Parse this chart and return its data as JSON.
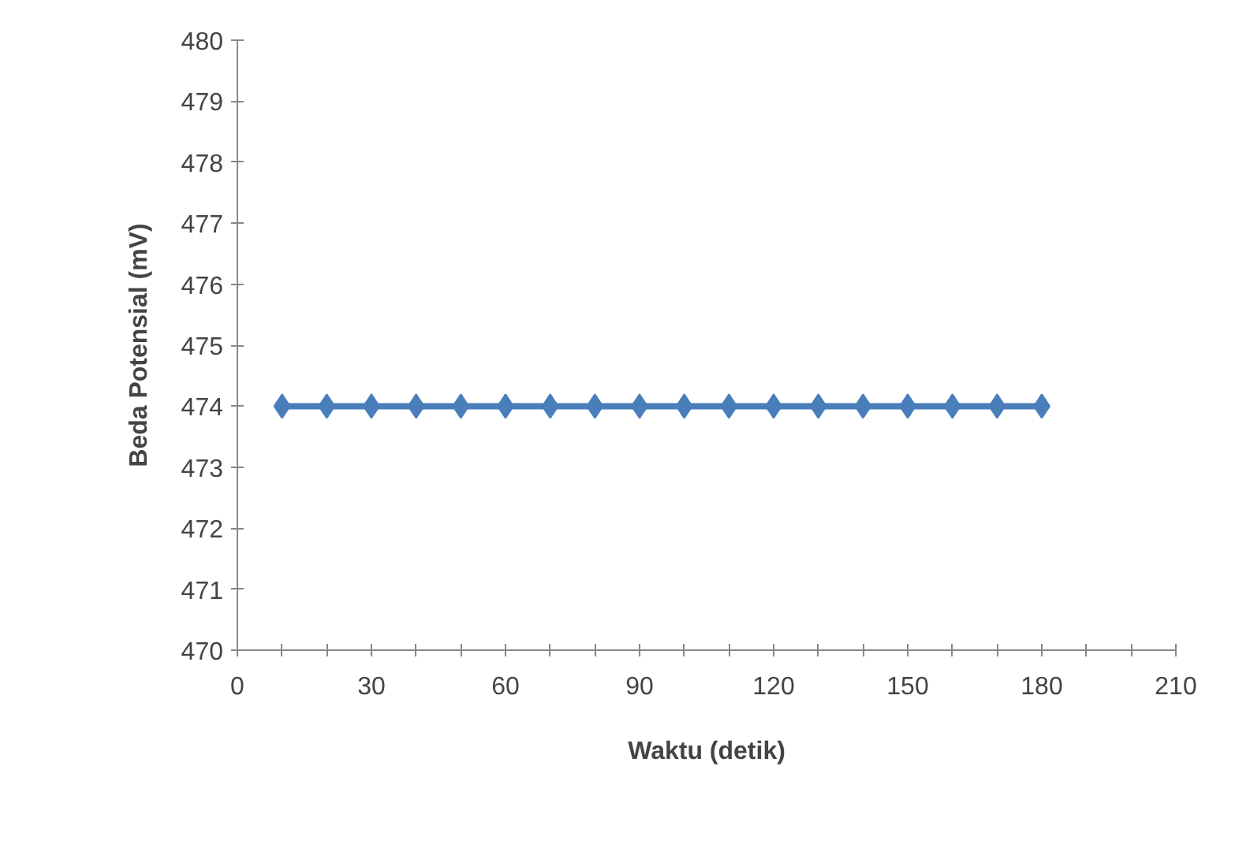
{
  "chart_data": {
    "type": "line",
    "xlabel": "Waktu (detik)",
    "ylabel": "Beda Potensial (mV)",
    "x": [
      10,
      20,
      30,
      40,
      50,
      60,
      70,
      80,
      90,
      100,
      110,
      120,
      130,
      140,
      150,
      160,
      170,
      180
    ],
    "series": [
      {
        "color": "#4a7ebb",
        "values": [
          474,
          474,
          474,
          474,
          474,
          474,
          474,
          474,
          474,
          474,
          474,
          474,
          474,
          474,
          474,
          474,
          474,
          474
        ]
      }
    ],
    "xlim": [
      0,
      210
    ],
    "xticks": [
      0,
      {
        "value": 10,
        "label": null
      },
      {
        "value": 20,
        "label": null
      },
      30,
      {
        "value": 40,
        "label": null
      },
      {
        "value": 50,
        "label": null
      },
      60,
      {
        "value": 70,
        "label": null
      },
      {
        "value": 80,
        "label": null
      },
      90,
      {
        "value": 100,
        "label": null
      },
      {
        "value": 110,
        "label": null
      },
      120,
      {
        "value": 130,
        "label": null
      },
      {
        "value": 140,
        "label": null
      },
      150,
      {
        "value": 160,
        "label": null
      },
      {
        "value": 170,
        "label": null
      },
      180,
      {
        "value": 190,
        "label": null
      },
      {
        "value": 200,
        "label": null
      },
      210
    ],
    "ylim": [
      470,
      480
    ],
    "yticks": [
      470,
      471,
      472,
      473,
      474,
      475,
      476,
      477,
      478,
      479,
      480
    ],
    "grid": false,
    "marker": "diamond",
    "line_style": "solid"
  }
}
